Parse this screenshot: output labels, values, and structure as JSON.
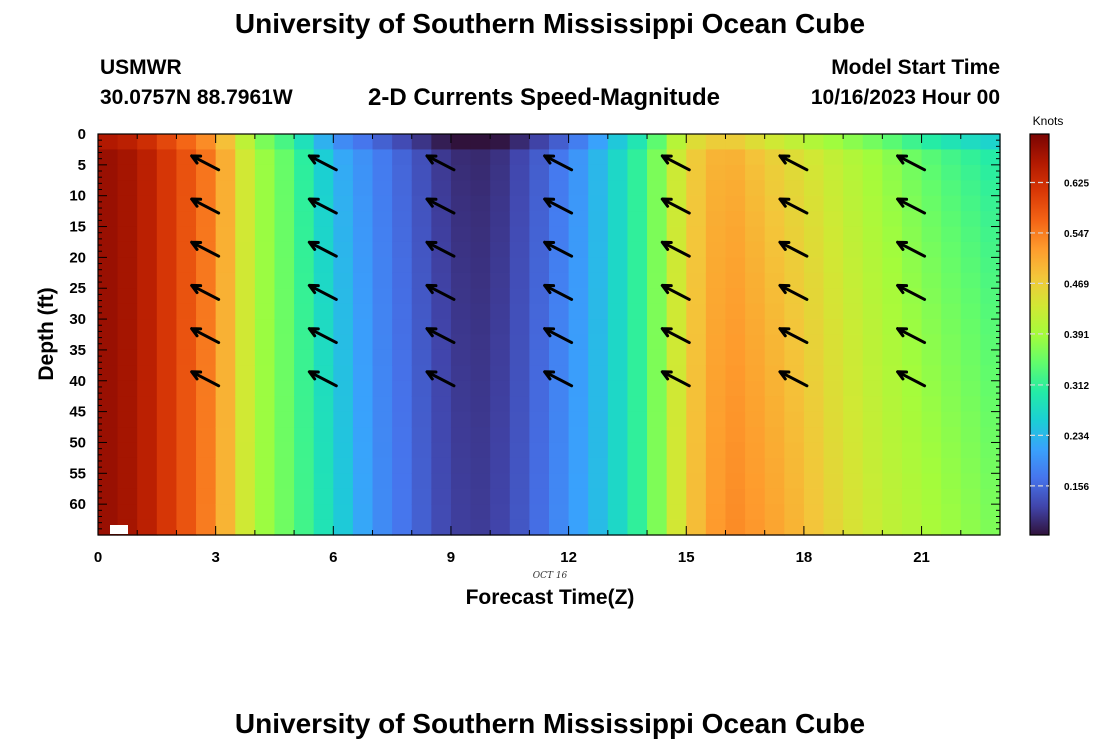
{
  "header": {
    "title": "University of Southern Mississippi Ocean Cube",
    "station": "USMWR",
    "coords": "30.0757N  88.7961W",
    "subtitle": "2-D Currents Speed-Magnitude",
    "start_label": "Model Start Time",
    "start_value": "10/16/2023 Hour 00"
  },
  "footer": {
    "title": "University of Southern Mississippi Ocean Cube"
  },
  "chart_data": {
    "type": "heatmap",
    "title": "2-D Currents Speed-Magnitude",
    "xlabel": "Forecast Time(Z)",
    "ylabel": "Depth (ft)",
    "date_label": "OCT 16",
    "xlim": [
      0,
      23
    ],
    "ylim": [
      65,
      0
    ],
    "x_ticks": [
      0,
      3,
      6,
      9,
      12,
      15,
      18,
      21
    ],
    "y_ticks": [
      0,
      5,
      10,
      15,
      20,
      25,
      30,
      35,
      40,
      45,
      50,
      55,
      60
    ],
    "colorbar": {
      "label": "Knots",
      "ticks": [
        0.156,
        0.234,
        0.312,
        0.391,
        0.469,
        0.547,
        0.625
      ],
      "range": [
        0.08,
        0.7
      ],
      "colors": [
        "#30123b",
        "#4145ab",
        "#4675ed",
        "#39a2fc",
        "#1bcfd4",
        "#24eca6",
        "#61fc6c",
        "#a4fc3b",
        "#d1e834",
        "#f3c63a",
        "#fe9b2d",
        "#f36315",
        "#d93806",
        "#b11901",
        "#7a0403"
      ]
    },
    "hours": [
      0,
      1,
      2,
      3,
      4,
      5,
      6,
      7,
      8,
      9,
      10,
      11,
      12,
      13,
      14,
      15,
      16,
      17,
      18,
      19,
      20,
      21,
      22,
      23
    ],
    "speed_surface": [
      0.68,
      0.66,
      0.6,
      0.54,
      0.4,
      0.33,
      0.22,
      0.18,
      0.14,
      0.1,
      0.095,
      0.13,
      0.18,
      0.25,
      0.33,
      0.46,
      0.5,
      0.46,
      0.43,
      0.4,
      0.37,
      0.33,
      0.3,
      0.28
    ],
    "speed_bottom": [
      0.68,
      0.66,
      0.6,
      0.53,
      0.4,
      0.34,
      0.27,
      0.2,
      0.16,
      0.12,
      0.115,
      0.15,
      0.2,
      0.25,
      0.33,
      0.47,
      0.54,
      0.52,
      0.49,
      0.45,
      0.42,
      0.4,
      0.38,
      0.36
    ],
    "vectors": {
      "hours": [
        3,
        6,
        9,
        12,
        15,
        18,
        21
      ],
      "depths": [
        5,
        12,
        19,
        26,
        33,
        40
      ],
      "direction": "toward northwest"
    }
  }
}
